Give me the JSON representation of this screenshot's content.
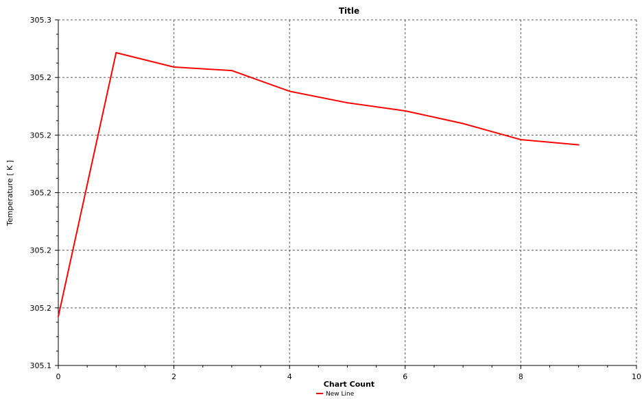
{
  "chart_data": {
    "type": "line",
    "title": "Title",
    "xlabel": "Chart Count",
    "ylabel": "Temperature [ K ]",
    "xlim": [
      0,
      10
    ],
    "ylim": [
      0,
      6
    ],
    "x_ticks": [
      "0",
      "2",
      "4",
      "6",
      "8",
      "10"
    ],
    "y_ticks": [
      "305.1",
      "305.2",
      "305.2",
      "305.2",
      "305.2",
      "305.2",
      "305.3"
    ],
    "grid": true,
    "legend_position": "bottom-center",
    "series": [
      {
        "name": "New Line",
        "color": "#ff0000",
        "x": [
          0,
          1,
          2,
          3,
          4,
          5,
          6,
          7,
          8,
          9
        ],
        "y": [
          0.85,
          5.43,
          5.18,
          5.12,
          4.76,
          4.56,
          4.42,
          4.2,
          3.92,
          3.83
        ]
      }
    ]
  }
}
